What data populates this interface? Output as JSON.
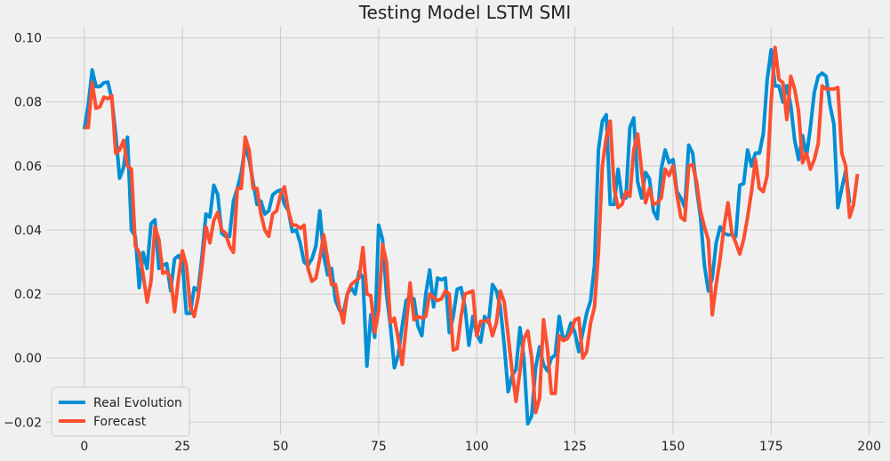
{
  "chart_data": {
    "type": "line",
    "title": "Testing Model LSTM SMI",
    "xlabel": "",
    "ylabel": "",
    "xlim": [
      -9.7,
      203.7
    ],
    "ylim": [
      -0.0238,
      0.1035
    ],
    "xticks": [
      0,
      25,
      50,
      75,
      100,
      125,
      150,
      175,
      200
    ],
    "xtick_labels": [
      "0",
      "25",
      "50",
      "75",
      "100",
      "125",
      "150",
      "175",
      "200"
    ],
    "yticks": [
      -0.02,
      0.0,
      0.02,
      0.04,
      0.06,
      0.08,
      0.1
    ],
    "ytick_labels": [
      "−0.02",
      "0.00",
      "0.02",
      "0.04",
      "0.06",
      "0.08",
      "0.10"
    ],
    "grid": true,
    "legend_position": "bottom-left",
    "series": [
      {
        "name": "Real Evolution",
        "color": "#008fd5",
        "values": [
          0.0715,
          0.079,
          0.09,
          0.0848,
          0.0848,
          0.086,
          0.0862,
          0.081,
          0.07,
          0.0562,
          0.0595,
          0.069,
          0.04,
          0.038,
          0.022,
          0.033,
          0.028,
          0.042,
          0.0432,
          0.028,
          0.029,
          0.0295,
          0.021,
          0.031,
          0.032,
          0.03,
          0.014,
          0.014,
          0.022,
          0.021,
          0.032,
          0.045,
          0.044,
          0.054,
          0.051,
          0.039,
          0.038,
          0.038,
          0.049,
          0.053,
          0.058,
          0.066,
          0.062,
          0.055,
          0.048,
          0.049,
          0.045,
          0.046,
          0.051,
          0.052,
          0.0525,
          0.048,
          0.046,
          0.0395,
          0.04,
          0.036,
          0.03,
          0.029,
          0.031,
          0.035,
          0.046,
          0.032,
          0.026,
          0.028,
          0.018,
          0.015,
          0.014,
          0.02,
          0.022,
          0.02,
          0.027,
          0.025,
          -0.0025,
          0.0135,
          0.0065,
          0.0415,
          0.037,
          0.02,
          0.01,
          -0.003,
          0.001,
          0.01,
          0.018,
          0.019,
          0.0185,
          0.01,
          0.007,
          0.02,
          0.0275,
          0.016,
          0.025,
          0.0245,
          0.025,
          0.008,
          0.013,
          0.0215,
          0.022,
          0.016,
          0.004,
          0.013,
          0.0075,
          0.005,
          0.013,
          0.011,
          0.023,
          0.021,
          0.016,
          0.004,
          -0.0105,
          -0.0055,
          -0.0035,
          0.0095,
          0.0,
          -0.0205,
          -0.018,
          -0.003,
          0.0035,
          -0.002,
          -0.004,
          0.0,
          0.001,
          0.013,
          0.006,
          0.007,
          0.011,
          0.008,
          0.002,
          0.008,
          0.014,
          0.018,
          0.029,
          0.065,
          0.074,
          0.076,
          0.048,
          0.048,
          0.059,
          0.05,
          0.05,
          0.072,
          0.075,
          0.055,
          0.05,
          0.058,
          0.056,
          0.046,
          0.0435,
          0.059,
          0.065,
          0.061,
          0.062,
          0.052,
          0.05,
          0.047,
          0.0665,
          0.064,
          0.053,
          0.044,
          0.029,
          0.021,
          0.025,
          0.036,
          0.041,
          0.039,
          0.0385,
          0.0385,
          0.038,
          0.054,
          0.0545,
          0.065,
          0.06,
          0.064,
          0.064,
          0.07,
          0.087,
          0.0963,
          0.085,
          0.085,
          0.08,
          0.085,
          0.079,
          0.068,
          0.062,
          0.0695,
          0.063,
          0.072,
          0.083,
          0.088,
          0.089,
          0.088,
          0.079,
          0.073,
          0.047,
          0.053,
          0.0585,
          0.0485
        ]
      },
      {
        "name": "Forecast",
        "color": "#fc4f30",
        "values": [
          0.072,
          0.072,
          0.086,
          0.078,
          0.0785,
          0.0815,
          0.081,
          0.082,
          0.064,
          0.065,
          0.068,
          0.06,
          0.059,
          0.035,
          0.033,
          0.026,
          0.0175,
          0.024,
          0.041,
          0.037,
          0.0265,
          0.027,
          0.025,
          0.0145,
          0.025,
          0.0335,
          0.029,
          0.016,
          0.013,
          0.019,
          0.029,
          0.041,
          0.036,
          0.043,
          0.0455,
          0.04,
          0.039,
          0.035,
          0.033,
          0.053,
          0.053,
          0.069,
          0.065,
          0.053,
          0.053,
          0.045,
          0.04,
          0.038,
          0.045,
          0.046,
          0.051,
          0.0535,
          0.046,
          0.0415,
          0.0415,
          0.0405,
          0.0415,
          0.028,
          0.024,
          0.025,
          0.031,
          0.0385,
          0.031,
          0.023,
          0.023,
          0.016,
          0.011,
          0.02,
          0.023,
          0.024,
          0.025,
          0.0345,
          0.02,
          0.0195,
          0.008,
          0.015,
          0.0355,
          0.03,
          0.011,
          0.0125,
          0.006,
          -0.002,
          0.01,
          0.0235,
          0.012,
          0.013,
          0.0125,
          0.013,
          0.02,
          0.019,
          0.018,
          0.0185,
          0.021,
          0.02,
          0.0025,
          0.003,
          0.013,
          0.02,
          0.0205,
          0.021,
          0.007,
          0.0115,
          0.0115,
          0.012,
          0.007,
          0.011,
          0.021,
          0.0175,
          0.007,
          -0.004,
          -0.0135,
          -0.004,
          0.006,
          0.0085,
          0.0,
          -0.017,
          -0.0125,
          0.012,
          0.003,
          -0.011,
          -0.011,
          0.007,
          0.0055,
          0.006,
          0.008,
          0.012,
          0.0125,
          0.0,
          0.002,
          0.011,
          0.016,
          0.033,
          0.06,
          0.069,
          0.074,
          0.053,
          0.047,
          0.048,
          0.052,
          0.0505,
          0.065,
          0.07,
          0.0585,
          0.0485,
          0.053,
          0.048,
          0.0485,
          0.05,
          0.059,
          0.057,
          0.06,
          0.051,
          0.044,
          0.043,
          0.06,
          0.0605,
          0.055,
          0.046,
          0.041,
          0.037,
          0.0135,
          0.023,
          0.031,
          0.041,
          0.0485,
          0.039,
          0.036,
          0.0325,
          0.037,
          0.044,
          0.052,
          0.062,
          0.053,
          0.052,
          0.057,
          0.08,
          0.097,
          0.087,
          0.086,
          0.0745,
          0.088,
          0.084,
          0.077,
          0.061,
          0.064,
          0.059,
          0.062,
          0.067,
          0.085,
          0.084,
          0.084,
          0.084,
          0.0845,
          0.064,
          0.06,
          0.044,
          0.048,
          0.0575
        ]
      }
    ]
  }
}
